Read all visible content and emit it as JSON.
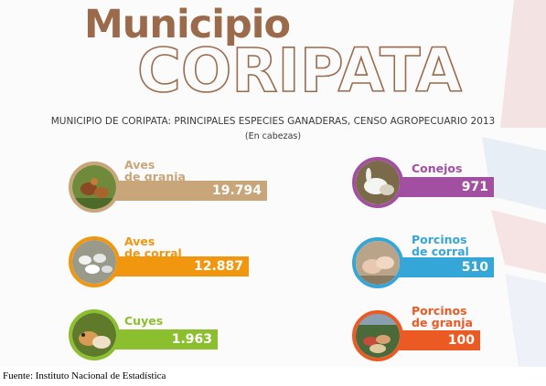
{
  "header": {
    "title_top": "Municipio",
    "title_main": "CORIPATA"
  },
  "chart_data": {
    "type": "bar",
    "title": "MUNICIPIO DE CORIPATA: PRINCIPALES ESPECIES GANADERAS, CENSO AGROPECUARIO 2013",
    "subtitle": "(En cabezas)",
    "categories": [
      "Aves de granja",
      "Aves de corral",
      "Cuyes",
      "Conejos",
      "Porcinos de corral",
      "Porcinos de granja"
    ],
    "values": [
      19794,
      12887,
      1963,
      971,
      510,
      100
    ],
    "items": [
      {
        "label_1": "Aves",
        "label_2": "de granja",
        "value": 19794,
        "value_text": "19.794",
        "color": "#c9a57a",
        "icon": "chickens-photo-icon"
      },
      {
        "label_1": "Aves",
        "label_2": "de corral",
        "value": 12887,
        "value_text": "12.887",
        "color": "#f0960f",
        "icon": "poultry-photo-icon"
      },
      {
        "label_1": "Cuyes",
        "label_2": "",
        "value": 1963,
        "value_text": "1.963",
        "color": "#8cbf2e",
        "icon": "guinea-pigs-photo-icon"
      },
      {
        "label_1": "Conejos",
        "label_2": "",
        "value": 971,
        "value_text": "971",
        "color": "#a24fa2",
        "icon": "rabbits-photo-icon"
      },
      {
        "label_1": "Porcinos",
        "label_2": "de corral",
        "value": 510,
        "value_text": "510",
        "color": "#35a6d8",
        "icon": "pigs-photo-icon"
      },
      {
        "label_1": "Porcinos",
        "label_2": "de granja",
        "value": 100,
        "value_text": "100",
        "color": "#ec5a24",
        "icon": "farm-pigs-photo-icon"
      }
    ]
  },
  "source": "Fuente: Instituto Nacional de Estadística"
}
